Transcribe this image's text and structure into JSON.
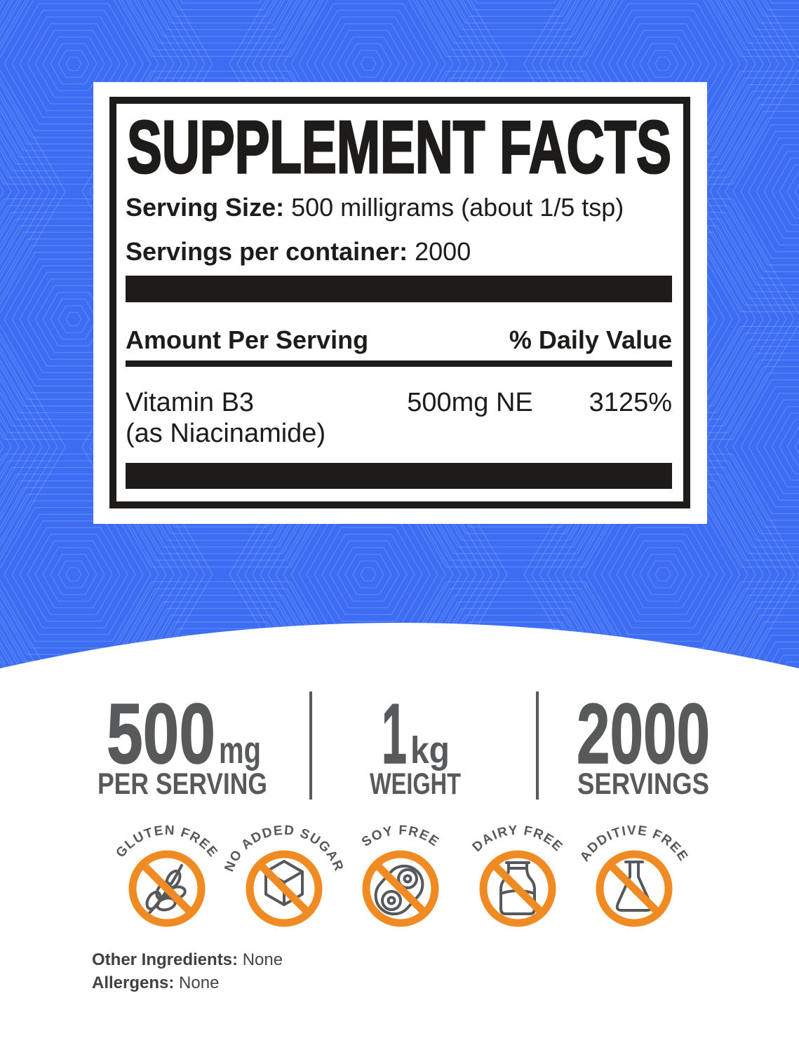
{
  "label": {
    "title": "SUPPLEMENT FACTS",
    "serving_size_label": "Serving Size:",
    "serving_size_value": "500 milligrams (about 1/5 tsp)",
    "servings_label": "Servings per container:",
    "servings_value": "2000",
    "col_amount": "Amount Per Serving",
    "col_dv": "% Daily Value",
    "rows": [
      {
        "name_line1": "Vitamin B3",
        "name_line2": "(as Niacinamide)",
        "amount": "500mg NE",
        "dv": "3125%"
      }
    ]
  },
  "stats": [
    {
      "value": "500",
      "unit": "mg",
      "label": "PER SERVING"
    },
    {
      "value": "1",
      "unit": "kg",
      "label": "WEIGHT"
    },
    {
      "value": "2000",
      "unit": "",
      "label": "SERVINGS"
    }
  ],
  "badges": [
    {
      "label": "GLUTEN FREE",
      "icon": "wheat"
    },
    {
      "label": "NO ADDED SUGAR",
      "icon": "sugar-cube"
    },
    {
      "label": "SOY FREE",
      "icon": "soybean"
    },
    {
      "label": "DAIRY FREE",
      "icon": "milk-bottle"
    },
    {
      "label": "ADDITIVE FREE",
      "icon": "flask"
    }
  ],
  "footnotes": [
    {
      "label": "Other Ingredients:",
      "value": "None"
    },
    {
      "label": "Allergens:",
      "value": "None"
    }
  ],
  "colors": {
    "background_blue": "#3c6df2",
    "accent_orange": "#ef8b22",
    "icon_gray": "#57585a",
    "stat_gray": "#58595b",
    "text_black": "#1d1c1b"
  }
}
